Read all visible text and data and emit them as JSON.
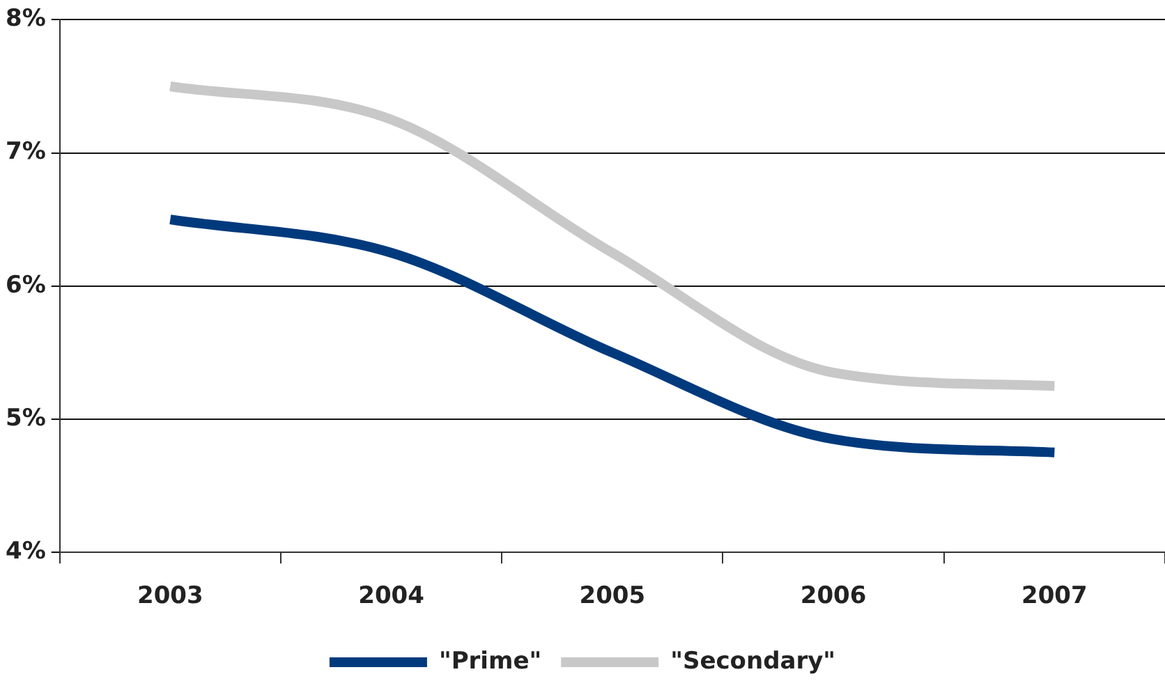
{
  "chart_data": {
    "type": "line",
    "categories": [
      "2003",
      "2004",
      "2005",
      "2006",
      "2007"
    ],
    "series": [
      {
        "name": "\"Prime\"",
        "color": "#003a7d",
        "values": [
          6.5,
          6.25,
          5.5,
          4.85,
          4.75
        ]
      },
      {
        "name": "\"Secondary\"",
        "color": "#c8c8c8",
        "values": [
          7.5,
          7.25,
          6.25,
          5.35,
          5.25
        ]
      }
    ],
    "ylim": [
      4,
      8
    ],
    "yticks": [
      {
        "value": 4,
        "label": "4%"
      },
      {
        "value": 5,
        "label": "5%"
      },
      {
        "value": 6,
        "label": "6%"
      },
      {
        "value": 7,
        "label": "7%"
      },
      {
        "value": 8,
        "label": "8%"
      }
    ],
    "grid": "y",
    "legend": "bottom",
    "marker": "none",
    "line_style": "solid"
  }
}
